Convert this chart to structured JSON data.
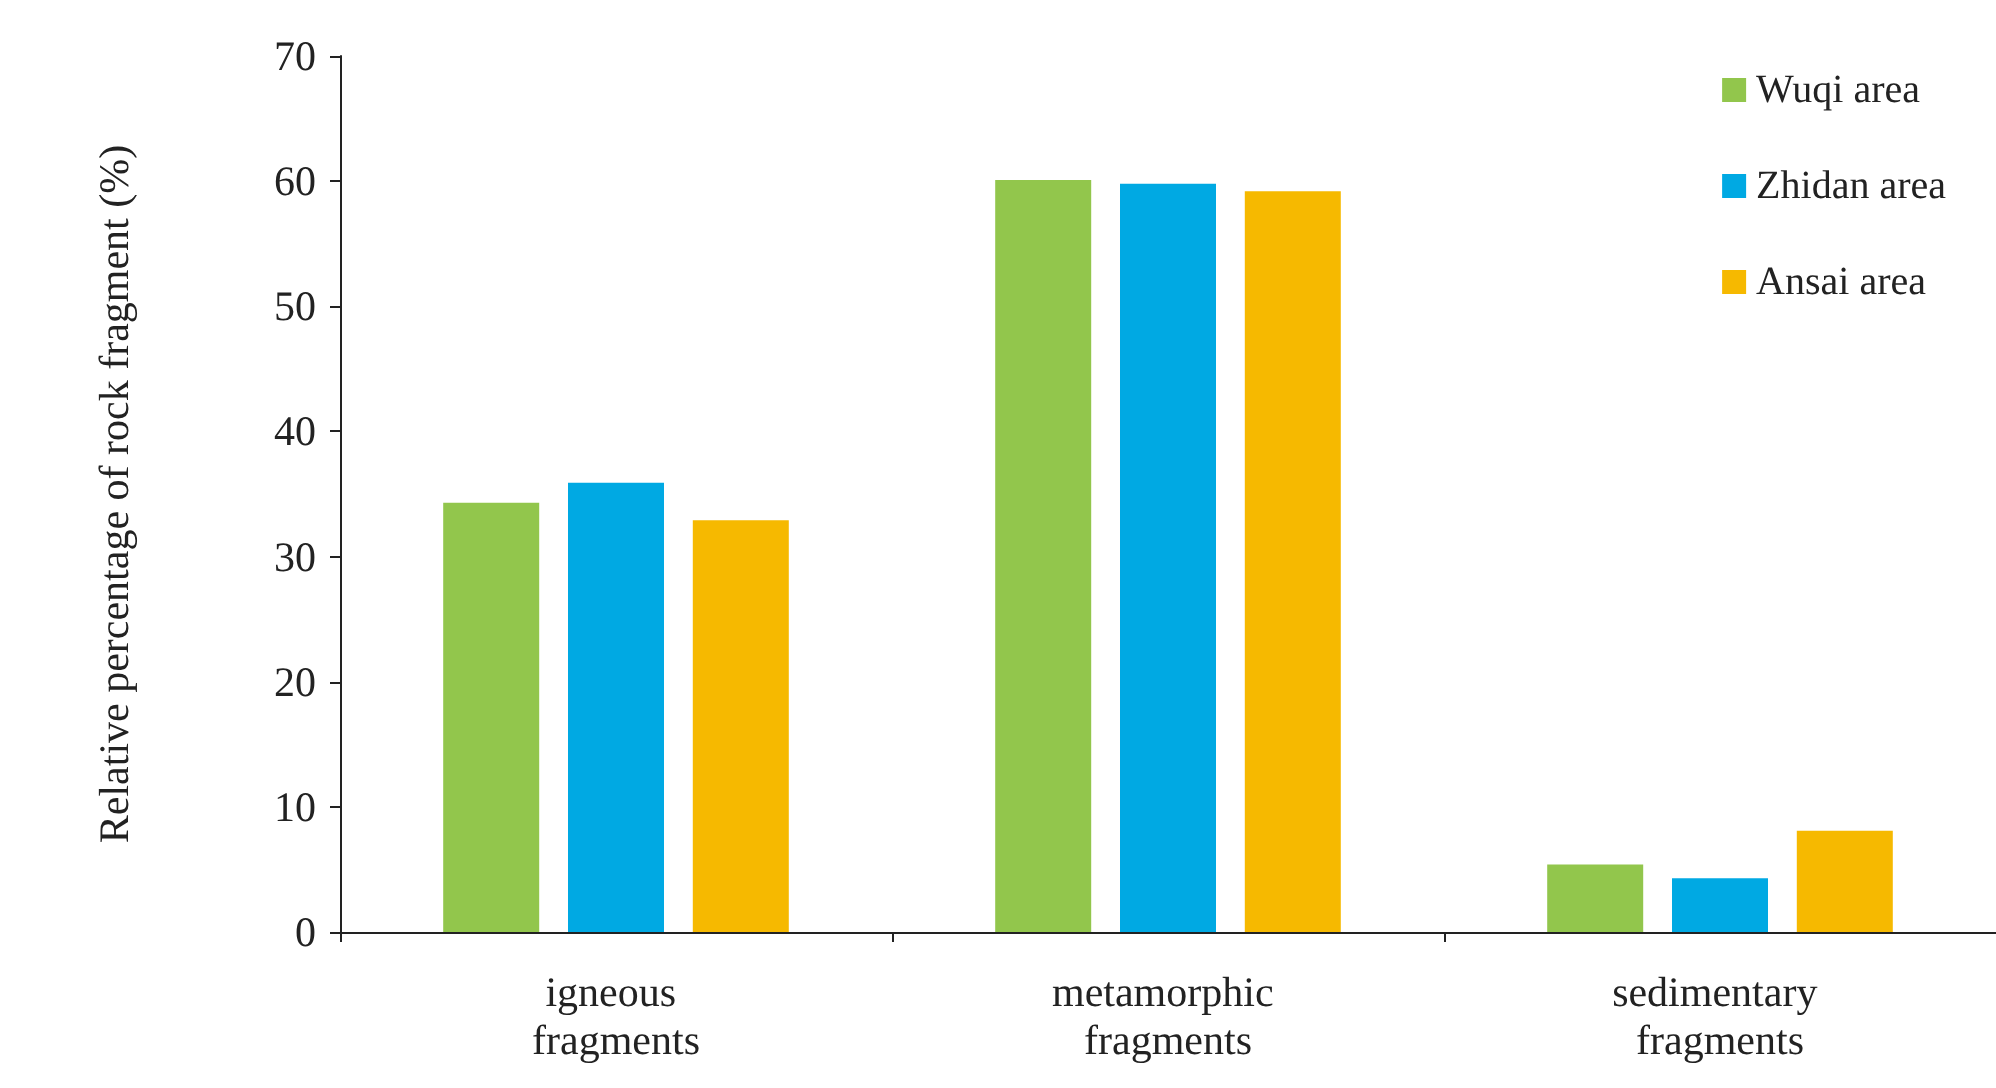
{
  "chart_data": {
    "type": "bar",
    "ylabel": "Relative percentage of rock fragment (%)",
    "categories": [
      "igneous fragments",
      "metamorphic fragments",
      "sedimentary fragments"
    ],
    "series": [
      {
        "name": "Wuqi area",
        "color": "#92c64c",
        "values": [
          34.3,
          60.1,
          5.4
        ]
      },
      {
        "name": "Zhidan area",
        "color": "#00a9e3",
        "values": [
          35.9,
          59.8,
          4.3
        ]
      },
      {
        "name": "Ansai area",
        "color": "#f6b900",
        "values": [
          32.9,
          59.2,
          8.1
        ]
      }
    ],
    "ylim": [
      0,
      70
    ],
    "yticks": [
      0,
      10,
      20,
      30,
      40,
      50,
      60,
      70
    ],
    "grid": false,
    "legend": "top right"
  }
}
